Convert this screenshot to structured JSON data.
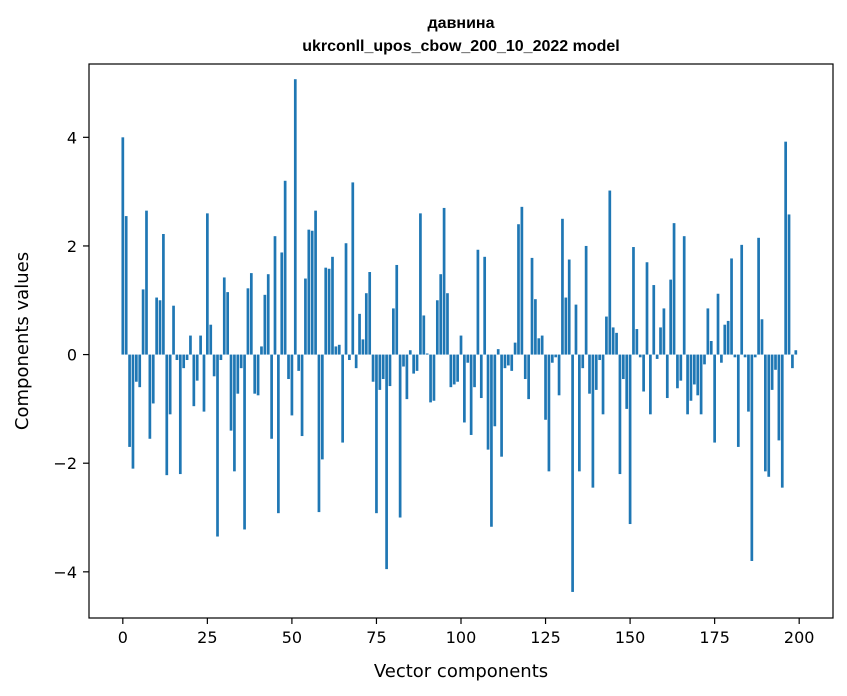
{
  "chart_data": {
    "type": "bar",
    "title_line1": "давнина",
    "title_line2": "ukrconll_upos_cbow_200_10_2022 model",
    "xlabel": "Vector components",
    "ylabel": "Components values",
    "xlim": [
      -10,
      210
    ],
    "ylim": [
      -4.85,
      5.35
    ],
    "xticks": [
      0,
      25,
      50,
      75,
      100,
      125,
      150,
      175,
      200
    ],
    "xtick_labels": [
      "0",
      "25",
      "50",
      "75",
      "100",
      "125",
      "150",
      "175",
      "200"
    ],
    "yticks": [
      -4,
      -2,
      0,
      2,
      4
    ],
    "ytick_labels": [
      "−4",
      "−2",
      "0",
      "2",
      "4"
    ],
    "grid": false,
    "bar_color": "#1f77b4",
    "values": [
      4.0,
      2.55,
      -1.7,
      -2.1,
      -0.5,
      -0.6,
      1.2,
      2.65,
      -1.55,
      -0.9,
      1.05,
      1.0,
      2.22,
      -2.22,
      -1.1,
      0.9,
      -0.1,
      -2.2,
      -0.25,
      -0.1,
      0.35,
      -0.95,
      -0.48,
      0.35,
      -1.05,
      2.6,
      0.55,
      -0.4,
      -3.35,
      -0.1,
      1.42,
      1.15,
      -1.4,
      -2.15,
      -0.72,
      -0.25,
      -3.22,
      1.22,
      1.5,
      -0.72,
      -0.75,
      0.15,
      1.1,
      1.48,
      -1.55,
      2.18,
      -2.92,
      1.88,
      3.2,
      -0.45,
      -1.12,
      5.07,
      -0.3,
      -1.5,
      1.4,
      2.3,
      2.28,
      2.65,
      -2.9,
      -1.93,
      1.6,
      1.58,
      1.8,
      0.15,
      0.18,
      -1.62,
      2.05,
      -0.1,
      3.17,
      -0.25,
      0.75,
      0.28,
      1.13,
      1.52,
      -0.5,
      -2.92,
      -0.65,
      -0.45,
      -3.95,
      -0.58,
      0.85,
      1.65,
      -3.0,
      -0.22,
      -0.82,
      0.08,
      -0.35,
      -0.3,
      2.6,
      0.72,
      0.02,
      -0.88,
      -0.85,
      1.0,
      1.48,
      2.7,
      1.13,
      -0.6,
      -0.55,
      -0.5,
      0.35,
      -1.25,
      -0.15,
      -1.48,
      -0.6,
      1.93,
      -0.8,
      1.8,
      -1.75,
      -3.17,
      -1.32,
      0.1,
      -1.88,
      -0.25,
      -0.2,
      -0.3,
      0.22,
      2.4,
      2.72,
      -0.45,
      -0.82,
      1.78,
      1.02,
      0.3,
      0.35,
      -1.2,
      -2.15,
      -0.15,
      -0.05,
      -0.75,
      2.5,
      1.05,
      1.75,
      -4.37,
      0.92,
      -2.15,
      -0.25,
      2.0,
      -0.72,
      -2.45,
      -0.65,
      -0.1,
      -1.1,
      0.7,
      3.02,
      0.5,
      0.4,
      -2.2,
      -0.45,
      -1.0,
      -3.12,
      1.98,
      0.47,
      -0.05,
      -0.68,
      1.7,
      -1.1,
      1.28,
      -0.08,
      0.5,
      0.85,
      -0.8,
      1.38,
      2.42,
      -0.62,
      -0.48,
      2.18,
      -1.1,
      -0.85,
      -0.55,
      -0.75,
      -1.1,
      -0.18,
      0.85,
      0.25,
      -1.62,
      1.12,
      -0.15,
      0.55,
      0.62,
      1.77,
      -0.05,
      -1.7,
      2.02,
      -0.05,
      -1.05,
      -3.8,
      -0.05,
      2.15,
      0.65,
      -2.15,
      -2.25,
      -0.65,
      -0.28,
      -1.58,
      -2.45,
      3.92,
      2.58,
      -0.25,
      0.08
    ]
  }
}
